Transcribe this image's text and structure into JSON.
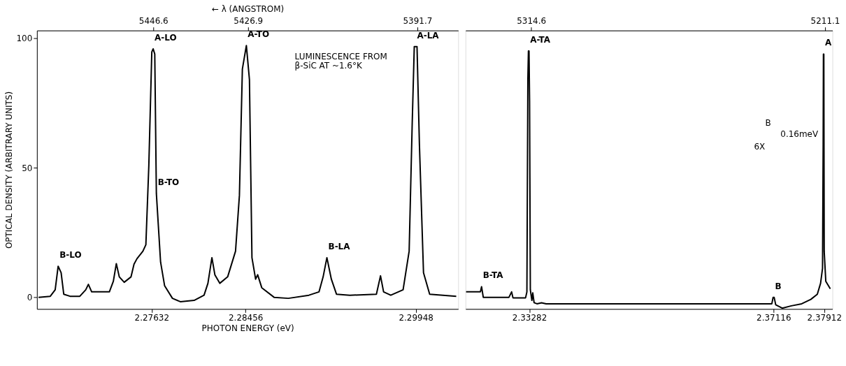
{
  "chart_data": [
    {
      "type": "line",
      "xlabel": "PHOTON ENERGY (eV)",
      "ylabel": "OPTICAL DENSITY (ARBITRARY UNITS)",
      "x2label": "← λ (ANGSTROM)",
      "x": [
        2.26641,
        2.26744,
        2.26787,
        2.26813,
        2.26839,
        2.26862,
        2.26917,
        2.27003,
        2.27055,
        2.27078,
        2.27107,
        2.27262,
        2.27297,
        2.27323,
        2.27349,
        2.27392,
        2.27452,
        2.27478,
        2.27504,
        2.27556,
        2.27582,
        2.27608,
        2.27634,
        2.27646,
        2.2766,
        2.27674,
        2.27711,
        2.27746,
        2.27815,
        2.27884,
        2.28005,
        2.28092,
        2.28126,
        2.28161,
        2.28187,
        2.2823,
        2.28299,
        2.28368,
        2.28402,
        2.28428,
        2.28463,
        2.2849,
        2.28512,
        2.28544,
        2.28562,
        2.28598,
        2.28706,
        2.28831,
        2.29011,
        2.291,
        2.29136,
        2.29169,
        2.29208,
        2.29253,
        2.2937,
        2.29603,
        2.29639,
        2.29666,
        2.29729,
        2.29837,
        2.2989,
        2.29917,
        2.29935,
        2.29959,
        2.2998,
        2.30016,
        2.3007,
        2.30303
      ],
      "series": [
        {
          "color": "#000000",
          "values": [
            0,
            0.4,
            2.9,
            12.0,
            9.5,
            1.2,
            0.4,
            0.4,
            2.9,
            5.0,
            2.1,
            2.1,
            6.2,
            13.0,
            7.9,
            5.8,
            7.9,
            12.8,
            14.9,
            17.8,
            20.3,
            50.9,
            94.7,
            95.9,
            93.9,
            40.1,
            13.6,
            4.5,
            -0.4,
            -1.7,
            -1.2,
            0.8,
            5.4,
            15.3,
            8.7,
            5.4,
            7.9,
            17.8,
            39.3,
            88.1,
            97.2,
            84.0,
            15.3,
            7.0,
            8.7,
            3.7,
            0,
            -0.4,
            0.8,
            2.1,
            7.9,
            15.3,
            7.0,
            1.2,
            0.8,
            1.2,
            8.3,
            2.1,
            0.8,
            2.9,
            17.8,
            67.4,
            96.8,
            96.8,
            59.1,
            9.5,
            1.2,
            0.4
          ]
        }
      ],
      "xlim": [
        2.26627,
        2.3032
      ],
      "xticks": [
        2.27632,
        2.28456,
        2.29948
      ],
      "ylim": [
        -4.5,
        103
      ],
      "yticks": [
        0,
        50,
        100
      ],
      "x2lim": [
        5470.8,
        5383.2
      ],
      "x2ticks": [
        5446.6,
        5426.9,
        5391.7
      ],
      "annotations": [
        "LUMINESCENCE FROM\nβ-SiC AT ~1.6°K",
        {
          "text": "B-LO",
          "x": 2.26813,
          "y": 12.0
        },
        {
          "text": "A-LO",
          "x": 2.27646,
          "y": 95.9
        },
        {
          "text": "B-TO",
          "x": 2.27674,
          "y": 40.1
        },
        {
          "text": "A-TO",
          "x": 2.28463,
          "y": 97.2
        },
        {
          "text": "B-LA",
          "x": 2.29169,
          "y": 15.3
        },
        {
          "text": "A-LA",
          "x": 2.29947,
          "y": 96.8
        }
      ]
    },
    {
      "type": "line",
      "tick_labels": "x",
      "x": [
        2.32289,
        2.32514,
        2.32532,
        2.32559,
        2.32962,
        2.33004,
        2.33025,
        2.33223,
        2.33244,
        2.33259,
        2.33268,
        2.33277,
        2.33286,
        2.33298,
        2.33322,
        2.33336,
        2.33357,
        2.33402,
        2.33474,
        2.33546,
        2.36732,
        2.3709,
        2.3711,
        2.37126,
        2.37151,
        2.37253,
        2.37396,
        2.37559,
        2.37702,
        2.37804,
        2.37855,
        2.37886,
        2.37896,
        2.379,
        2.37906,
        2.37912,
        2.37937,
        2.38008
      ],
      "series": [
        {
          "color": "#000000",
          "values": [
            2.1,
            2.1,
            4.1,
            0,
            0,
            2.1,
            -0.2,
            -0.2,
            2.1,
            84.0,
            95.1,
            95.1,
            75.7,
            2.9,
            -1.2,
            1.7,
            -2.1,
            -2.5,
            -2.1,
            -2.5,
            -2.5,
            -2.5,
            0,
            0,
            -2.9,
            -4.2,
            -3.3,
            -2.5,
            -0.8,
            1.2,
            5.4,
            11.2,
            59.1,
            93.9,
            93.9,
            17.8,
            6.2,
            3.3
          ]
        }
      ],
      "xlim": [
        2.3228,
        2.38041
      ],
      "xticks": [
        2.33282,
        2.37116,
        2.37912
      ],
      "ylim": [
        -4.5,
        103
      ],
      "yticks": [
        0,
        50,
        100
      ],
      "x2lim": [
        5337.7,
        5208.5
      ],
      "x2ticks": [
        5314.6,
        5211.1
      ],
      "annotations": [
        "B",
        "0.16meV",
        "6X",
        {
          "text": "B-TA",
          "x": 2.32532,
          "y": 4.1
        },
        {
          "text": "A-TA",
          "x": 2.33272,
          "y": 95.1
        },
        {
          "text": "B",
          "x": 2.37118,
          "y": 0
        },
        {
          "text": "A",
          "x": 2.37903,
          "y": 93.9
        }
      ]
    }
  ]
}
